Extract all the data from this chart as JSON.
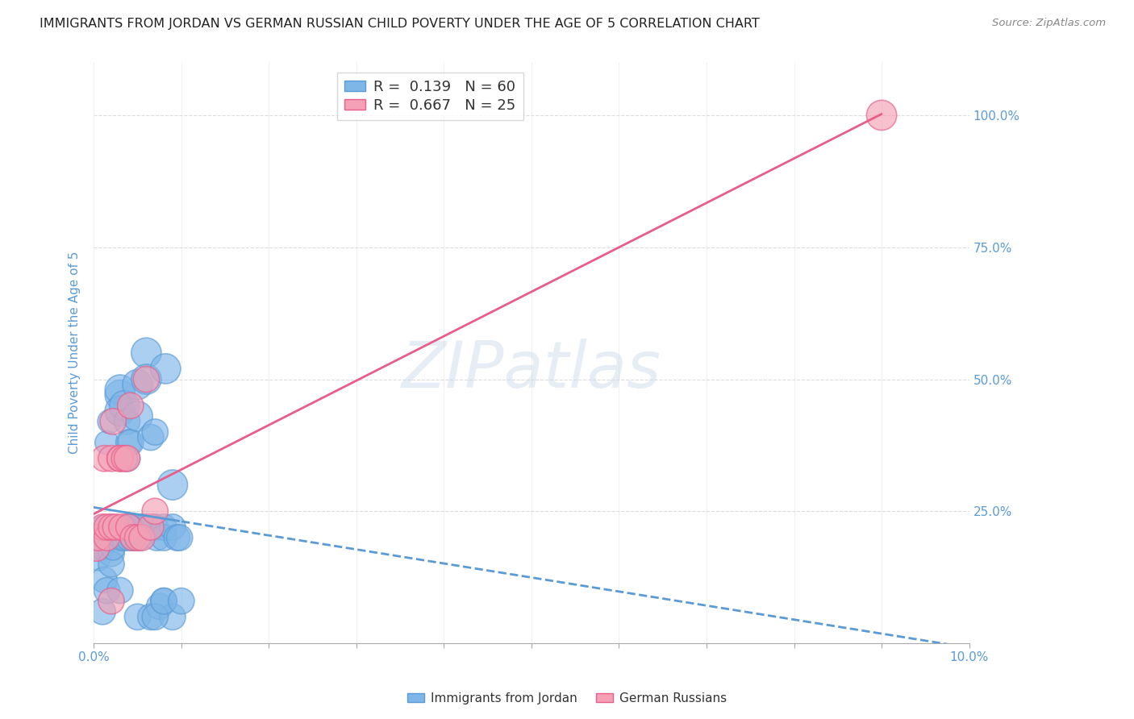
{
  "title": "IMMIGRANTS FROM JORDAN VS GERMAN RUSSIAN CHILD POVERTY UNDER THE AGE OF 5 CORRELATION CHART",
  "source": "Source: ZipAtlas.com",
  "ylabel": "Child Poverty Under the Age of 5",
  "xlim": [
    0.0,
    0.1
  ],
  "ylim": [
    0.0,
    1.1
  ],
  "yticks": [
    0.0,
    0.25,
    0.5,
    0.75,
    1.0
  ],
  "ytick_labels": [
    "",
    "25.0%",
    "50.0%",
    "75.0%",
    "100.0%"
  ],
  "xticks": [
    0.0,
    0.01,
    0.02,
    0.03,
    0.04,
    0.05,
    0.06,
    0.07,
    0.08,
    0.09,
    0.1
  ],
  "xtick_labels": [
    "0.0%",
    "",
    "",
    "",
    "",
    "",
    "",
    "",
    "",
    "",
    "10.0%"
  ],
  "color_jordan": "#7EB6E8",
  "color_german": "#F4A0B5",
  "color_jordan_line": "#5B9BD5",
  "color_german_line": "#E85D8A",
  "color_axis_labels": "#5B9BD5",
  "color_tick_labels": "#5B9BD5",
  "jordan_x": [
    0.0005,
    0.0005,
    0.0008,
    0.001,
    0.001,
    0.001,
    0.0012,
    0.0015,
    0.0015,
    0.0018,
    0.0018,
    0.002,
    0.002,
    0.002,
    0.0022,
    0.0025,
    0.003,
    0.003,
    0.003,
    0.0032,
    0.0035,
    0.0035,
    0.0038,
    0.0038,
    0.004,
    0.004,
    0.004,
    0.0042,
    0.0045,
    0.0045,
    0.005,
    0.005,
    0.005,
    0.005,
    0.0052,
    0.0055,
    0.006,
    0.006,
    0.006,
    0.0065,
    0.0065,
    0.007,
    0.007,
    0.0072,
    0.0075,
    0.008,
    0.008,
    0.008,
    0.0082,
    0.009,
    0.009,
    0.009,
    0.0095,
    0.0098,
    0.003,
    0.004,
    0.005,
    0.007,
    0.008,
    0.01
  ],
  "jordan_y": [
    0.18,
    0.16,
    0.2,
    0.18,
    0.06,
    0.22,
    0.12,
    0.38,
    0.1,
    0.42,
    0.2,
    0.2,
    0.17,
    0.15,
    0.18,
    0.22,
    0.47,
    0.48,
    0.44,
    0.2,
    0.45,
    0.2,
    0.35,
    0.42,
    0.22,
    0.2,
    0.38,
    0.38,
    0.22,
    0.2,
    0.49,
    0.43,
    0.22,
    0.05,
    0.2,
    0.22,
    0.55,
    0.5,
    0.22,
    0.39,
    0.05,
    0.22,
    0.4,
    0.2,
    0.07,
    0.22,
    0.2,
    0.08,
    0.52,
    0.22,
    0.3,
    0.05,
    0.2,
    0.2,
    0.1,
    0.22,
    0.22,
    0.05,
    0.08,
    0.08
  ],
  "jordan_size": [
    50,
    50,
    60,
    50,
    60,
    50,
    60,
    50,
    60,
    50,
    60,
    50,
    60,
    60,
    50,
    50,
    80,
    80,
    80,
    60,
    80,
    60,
    60,
    60,
    60,
    60,
    60,
    60,
    60,
    60,
    80,
    80,
    60,
    60,
    60,
    60,
    80,
    80,
    60,
    60,
    60,
    60,
    60,
    60,
    60,
    60,
    60,
    60,
    80,
    60,
    80,
    60,
    60,
    60,
    60,
    60,
    60,
    60,
    60,
    60
  ],
  "german_x": [
    0.0003,
    0.0005,
    0.001,
    0.0012,
    0.0015,
    0.0015,
    0.002,
    0.002,
    0.002,
    0.0022,
    0.0025,
    0.003,
    0.003,
    0.0032,
    0.0035,
    0.0038,
    0.004,
    0.0042,
    0.0045,
    0.005,
    0.0055,
    0.006,
    0.0065,
    0.007,
    0.09
  ],
  "german_y": [
    0.18,
    0.2,
    0.22,
    0.35,
    0.2,
    0.22,
    0.22,
    0.35,
    0.08,
    0.42,
    0.22,
    0.35,
    0.35,
    0.22,
    0.35,
    0.35,
    0.22,
    0.45,
    0.2,
    0.2,
    0.2,
    0.5,
    0.22,
    0.25,
    1.0
  ],
  "german_size": [
    60,
    60,
    60,
    60,
    60,
    60,
    60,
    60,
    60,
    60,
    60,
    60,
    60,
    60,
    60,
    60,
    60,
    60,
    60,
    60,
    60,
    60,
    60,
    60,
    80
  ],
  "background_color": "#ffffff",
  "grid_color": "#d9d9d9",
  "watermark_text": "ZIPatlas",
  "watermark_color": "#c8d8e8",
  "watermark_alpha": 0.45
}
